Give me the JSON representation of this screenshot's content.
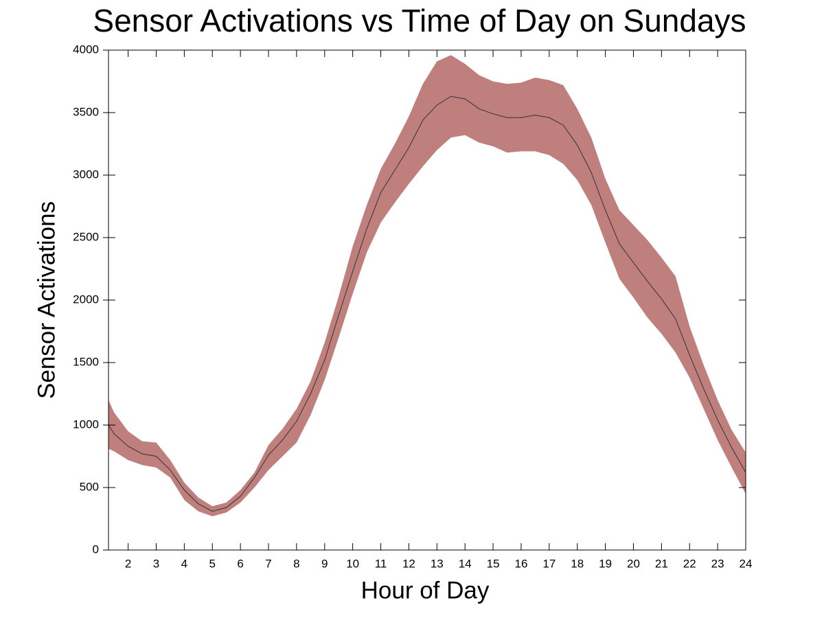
{
  "chart_data": {
    "type": "band-line",
    "title": "Sensor Activations vs Time of Day on Sundays",
    "x_label": "Hour of Day",
    "y_label": "Sensor Activations",
    "x": [
      1.3,
      1.5,
      2,
      2.5,
      3,
      3.5,
      4,
      4.5,
      5,
      5.5,
      6,
      6.5,
      7,
      7.5,
      8,
      8.5,
      9,
      9.5,
      10,
      10.5,
      11,
      11.5,
      12,
      12.5,
      13,
      13.5,
      14,
      14.5,
      15,
      15.5,
      16,
      16.5,
      17,
      17.5,
      18,
      18.5,
      19,
      19.5,
      20,
      20.5,
      21,
      21.5,
      22,
      22.5,
      23,
      23.5,
      24
    ],
    "values": [
      1000,
      930,
      830,
      770,
      750,
      640,
      480,
      370,
      310,
      340,
      430,
      580,
      760,
      880,
      1030,
      1250,
      1520,
      1880,
      2230,
      2570,
      2860,
      3040,
      3220,
      3440,
      3560,
      3630,
      3610,
      3530,
      3490,
      3460,
      3460,
      3480,
      3460,
      3400,
      3240,
      3020,
      2720,
      2450,
      2300,
      2150,
      2010,
      1850,
      1560,
      1290,
      1040,
      820,
      620
    ],
    "upper": [
      1200,
      1100,
      950,
      870,
      860,
      720,
      540,
      420,
      350,
      380,
      480,
      620,
      840,
      970,
      1130,
      1350,
      1660,
      2030,
      2430,
      2760,
      3050,
      3250,
      3470,
      3730,
      3910,
      3960,
      3890,
      3800,
      3750,
      3730,
      3740,
      3780,
      3760,
      3720,
      3530,
      3300,
      2970,
      2720,
      2600,
      2480,
      2340,
      2190,
      1790,
      1480,
      1200,
      960,
      780
    ],
    "lower": [
      810,
      790,
      720,
      680,
      660,
      580,
      400,
      310,
      270,
      300,
      380,
      500,
      640,
      750,
      860,
      1080,
      1360,
      1700,
      2050,
      2380,
      2620,
      2780,
      2930,
      3070,
      3200,
      3300,
      3320,
      3260,
      3230,
      3180,
      3190,
      3190,
      3160,
      3090,
      2960,
      2760,
      2460,
      2170,
      2020,
      1860,
      1730,
      1580,
      1380,
      1130,
      880,
      660,
      450
    ],
    "band_color": "#bf7f7d",
    "line_color": "#333333",
    "xlim": [
      1.3,
      24
    ],
    "ylim": [
      0,
      4000
    ],
    "xticks": [
      2,
      3,
      4,
      5,
      6,
      7,
      8,
      9,
      10,
      11,
      12,
      13,
      14,
      15,
      16,
      17,
      18,
      19,
      20,
      21,
      22,
      23,
      24
    ],
    "yticks": [
      0,
      500,
      1000,
      1500,
      2000,
      2500,
      3000,
      3500,
      4000
    ]
  }
}
